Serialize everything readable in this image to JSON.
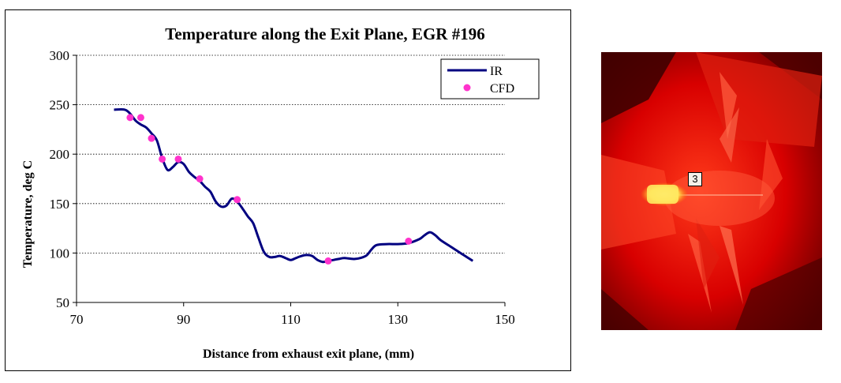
{
  "chart_data": {
    "type": "line",
    "title": "Temperature along the Exit Plane, EGR #196",
    "xlabel": "Distance from exhaust exit plane, (mm)",
    "ylabel": "Temperature, deg C",
    "xlim": [
      70,
      150
    ],
    "ylim": [
      50,
      300
    ],
    "xticks": [
      70,
      90,
      110,
      130,
      150
    ],
    "yticks": [
      50,
      100,
      150,
      200,
      250,
      300
    ],
    "grid": "horizontal dotted",
    "legend_position": "top-right",
    "series": [
      {
        "name": "IR",
        "kind": "line",
        "color": "#000080",
        "x": [
          77,
          79,
          80,
          81,
          82,
          83,
          84,
          85,
          86,
          87,
          88,
          89,
          90,
          91,
          92,
          93,
          94,
          95,
          96,
          97,
          98,
          99,
          100,
          101,
          102,
          103,
          104,
          105,
          106,
          107,
          108,
          109,
          110,
          111,
          112,
          113,
          114,
          115,
          116,
          117,
          118,
          119,
          120,
          122,
          124,
          125,
          126,
          128,
          130,
          132,
          134,
          135,
          136,
          137,
          138,
          140,
          142,
          144
        ],
        "y": [
          245,
          245,
          241,
          234,
          230,
          227,
          221,
          214,
          196,
          184,
          187,
          192,
          190,
          182,
          177,
          173,
          167,
          162,
          152,
          147,
          148,
          155,
          152,
          145,
          137,
          130,
          115,
          101,
          96,
          96,
          97,
          95,
          93,
          95,
          97,
          98,
          97,
          93,
          91,
          92,
          93,
          94,
          95,
          94,
          97,
          103,
          108,
          109,
          109,
          110,
          114,
          118,
          121,
          118,
          113,
          106,
          99,
          92
        ]
      },
      {
        "name": "CFD",
        "kind": "points",
        "color": "#ff33cc",
        "x": [
          80,
          82,
          84,
          86,
          89,
          93,
          100,
          117,
          132
        ],
        "y": [
          237,
          237,
          216,
          195,
          195,
          175,
          154,
          92,
          112
        ]
      }
    ]
  },
  "figure": {
    "photo_callout": "3"
  },
  "colors": {
    "ir_line": "#000080",
    "cfd_points": "#ff33cc",
    "photo_background": "#c40000"
  }
}
